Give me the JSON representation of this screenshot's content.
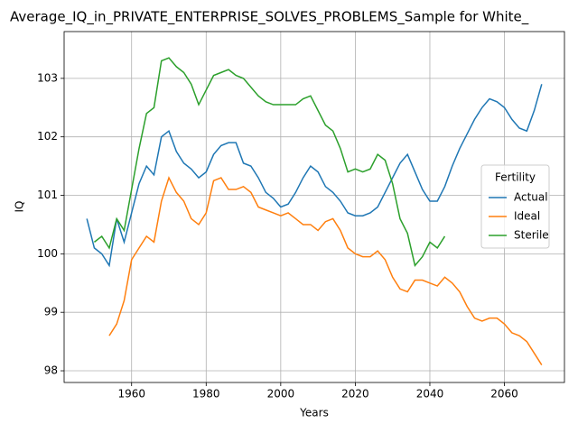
{
  "chart_data": {
    "type": "line",
    "title": "Average_IQ_in_PRIVATE_ENTERPRISE_SOLVES_PROBLEMS_Sample for White_",
    "x_label": "Years",
    "y_label": "IQ",
    "legend_title": "Fertility",
    "legend": "right",
    "grid": true,
    "x": [
      1948,
      1950,
      1952,
      1954,
      1956,
      1958,
      1960,
      1962,
      1964,
      1966,
      1968,
      1970,
      1972,
      1974,
      1976,
      1978,
      1980,
      1982,
      1984,
      1986,
      1988,
      1990,
      1992,
      1994,
      1996,
      1998,
      2000,
      2002,
      2004,
      2006,
      2008,
      2010,
      2012,
      2014,
      2016,
      2018,
      2020,
      2022,
      2024,
      2026,
      2028,
      2030,
      2032,
      2034,
      2036,
      2038,
      2040,
      2042,
      2044,
      2046,
      2048,
      2050,
      2052,
      2054,
      2056,
      2058,
      2060,
      2062,
      2064,
      2066,
      2068,
      2070
    ],
    "series": [
      {
        "name": "Actual",
        "color": "#1f77b4",
        "values": [
          100.6,
          100.1,
          100.0,
          99.8,
          100.6,
          100.2,
          100.7,
          101.2,
          101.5,
          101.35,
          102.0,
          102.1,
          101.75,
          101.55,
          101.45,
          101.3,
          101.4,
          101.7,
          101.85,
          101.9,
          101.9,
          101.55,
          101.5,
          101.3,
          101.05,
          100.95,
          100.8,
          100.85,
          101.05,
          101.3,
          101.5,
          101.4,
          101.15,
          101.05,
          100.9,
          100.7,
          100.65,
          100.65,
          100.7,
          100.8,
          101.05,
          101.3,
          101.55,
          101.7,
          101.4,
          101.1,
          100.9,
          100.9,
          101.15,
          101.5,
          101.8,
          102.05,
          102.3,
          102.5,
          102.65,
          102.6,
          102.5,
          102.3,
          102.15,
          102.1,
          102.45,
          102.9
        ]
      },
      {
        "name": "Ideal",
        "color": "#ff7f0e",
        "values": [
          null,
          null,
          null,
          98.6,
          98.8,
          99.2,
          99.9,
          100.1,
          100.3,
          100.2,
          100.9,
          101.3,
          101.05,
          100.9,
          100.6,
          100.5,
          100.7,
          101.25,
          101.3,
          101.1,
          101.1,
          101.15,
          101.05,
          100.8,
          100.75,
          100.7,
          100.65,
          100.7,
          100.6,
          100.5,
          100.5,
          100.4,
          100.55,
          100.6,
          100.4,
          100.1,
          100.0,
          99.95,
          99.95,
          100.05,
          99.9,
          99.6,
          99.4,
          99.35,
          99.55,
          99.55,
          99.5,
          99.45,
          99.6,
          99.5,
          99.35,
          99.1,
          98.9,
          98.85,
          98.9,
          98.9,
          98.8,
          98.65,
          98.6,
          98.5,
          98.3,
          98.1
        ]
      },
      {
        "name": "Sterile",
        "color": "#2ca02c",
        "values": [
          null,
          100.2,
          100.3,
          100.1,
          100.6,
          100.4,
          101.1,
          101.8,
          102.4,
          102.5,
          103.3,
          103.35,
          103.2,
          103.1,
          102.9,
          102.55,
          102.8,
          103.05,
          103.1,
          103.15,
          103.05,
          103.0,
          102.85,
          102.7,
          102.6,
          102.55,
          102.55,
          102.55,
          102.55,
          102.65,
          102.7,
          102.45,
          102.2,
          102.1,
          101.8,
          101.4,
          101.45,
          101.4,
          101.45,
          101.7,
          101.6,
          101.2,
          100.6,
          100.35,
          99.8,
          99.95,
          100.2,
          100.1,
          100.3,
          null,
          null,
          null,
          null,
          null,
          null,
          null,
          null,
          null,
          null,
          null,
          null,
          null
        ]
      }
    ],
    "xlim": [
      1941.9,
      2076.1
    ],
    "xticks": [
      1960,
      1980,
      2000,
      2020,
      2040,
      2060
    ],
    "ylim": [
      97.8,
      103.8
    ],
    "yticks": [
      98,
      99,
      100,
      101,
      102,
      103
    ]
  }
}
